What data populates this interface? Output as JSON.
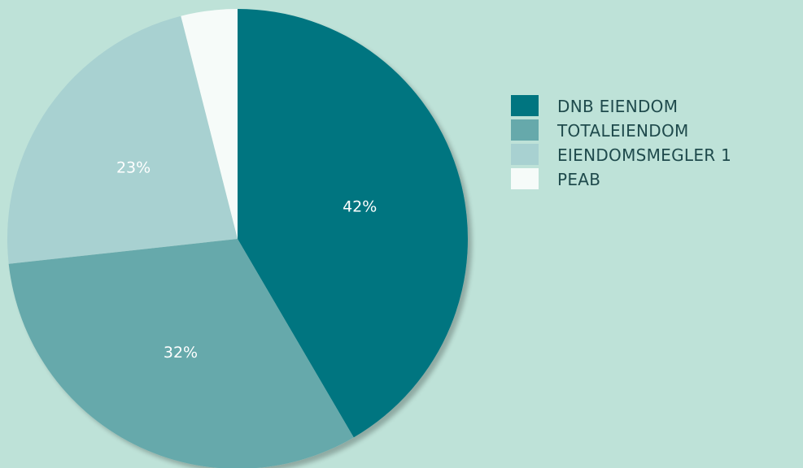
{
  "chart_data": {
    "type": "pie",
    "title": "",
    "legend_position": "right",
    "slices": [
      {
        "label": "DNB EIENDOM",
        "value": 42,
        "display": "42%",
        "color": "#007580"
      },
      {
        "label": "TOTALEIENDOM",
        "value": 32,
        "display": "32%",
        "color": "#66a9ab"
      },
      {
        "label": "EIENDOMSMEGLER 1",
        "value": 23,
        "display": "23%",
        "color": "#a8d1d1"
      },
      {
        "label": "PEAB",
        "value": 4,
        "display": "",
        "color": "#f6fbf9"
      }
    ]
  }
}
